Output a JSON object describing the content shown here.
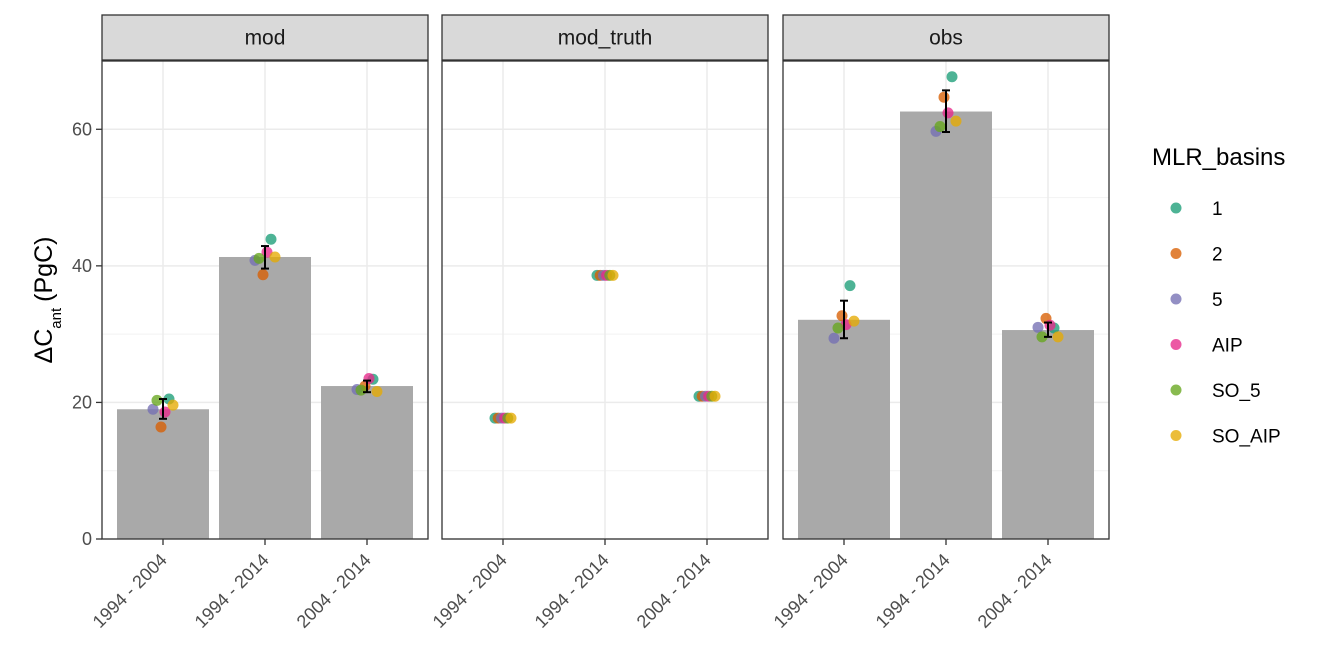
{
  "chart_data": {
    "type": "bar",
    "facets": [
      "mod",
      "mod_truth",
      "obs"
    ],
    "categories": [
      "1994 - 2004",
      "1994 - 2014",
      "2004 - 2014"
    ],
    "ylabel": {
      "main": "ΔC",
      "sub": "ant",
      "unit": "(PgC)"
    },
    "ylim": [
      0,
      70
    ],
    "yticks": [
      0,
      20,
      40,
      60
    ],
    "grid": true,
    "legend": {
      "title": "MLR_basins",
      "placement": "right",
      "entries": [
        "1",
        "2",
        "5",
        "AIP",
        "SO_5",
        "SO_AIP"
      ]
    },
    "colors": {
      "1": "#1B9E77",
      "2": "#D95F02",
      "5": "#7570B3",
      "AIP": "#E7298A",
      "SO_5": "#66A61E",
      "SO_AIP": "#E6AB02",
      "bar": "#a9a9a9",
      "strip": "#d9d9d9"
    },
    "panels": [
      {
        "facet": "mod",
        "bars": [
          19.0,
          41.3,
          22.4
        ],
        "errorbars": [
          [
            17.6,
            20.5
          ],
          [
            39.6,
            42.9
          ],
          [
            21.5,
            23.2
          ]
        ],
        "points": [
          [
            {
              "series": "1",
              "value": 20.5
            },
            {
              "series": "2",
              "value": 16.4
            },
            {
              "series": "5",
              "value": 19.0
            },
            {
              "series": "AIP",
              "value": 18.6
            },
            {
              "series": "SO_5",
              "value": 20.3
            },
            {
              "series": "SO_AIP",
              "value": 19.6
            }
          ],
          [
            {
              "series": "1",
              "value": 43.9
            },
            {
              "series": "2",
              "value": 38.7
            },
            {
              "series": "5",
              "value": 40.8
            },
            {
              "series": "AIP",
              "value": 42.0
            },
            {
              "series": "SO_5",
              "value": 41.1
            },
            {
              "series": "SO_AIP",
              "value": 41.3
            }
          ],
          [
            {
              "series": "1",
              "value": 23.4
            },
            {
              "series": "2",
              "value": 22.4
            },
            {
              "series": "5",
              "value": 21.9
            },
            {
              "series": "AIP",
              "value": 23.5
            },
            {
              "series": "SO_5",
              "value": 21.8
            },
            {
              "series": "SO_AIP",
              "value": 21.6
            }
          ]
        ]
      },
      {
        "facet": "mod_truth",
        "bars": [],
        "errorbars": [],
        "points": [
          [
            {
              "series": "1",
              "value": 17.7
            },
            {
              "series": "2",
              "value": 17.7
            },
            {
              "series": "5",
              "value": 17.7
            },
            {
              "series": "AIP",
              "value": 17.7
            },
            {
              "series": "SO_5",
              "value": 17.7
            },
            {
              "series": "SO_AIP",
              "value": 17.7
            }
          ],
          [
            {
              "series": "1",
              "value": 38.6
            },
            {
              "series": "2",
              "value": 38.6
            },
            {
              "series": "5",
              "value": 38.6
            },
            {
              "series": "AIP",
              "value": 38.6
            },
            {
              "series": "SO_5",
              "value": 38.6
            },
            {
              "series": "SO_AIP",
              "value": 38.6
            }
          ],
          [
            {
              "series": "1",
              "value": 20.9
            },
            {
              "series": "2",
              "value": 20.9
            },
            {
              "series": "5",
              "value": 20.9
            },
            {
              "series": "AIP",
              "value": 20.9
            },
            {
              "series": "SO_5",
              "value": 20.9
            },
            {
              "series": "SO_AIP",
              "value": 20.9
            }
          ]
        ]
      },
      {
        "facet": "obs",
        "bars": [
          32.1,
          62.6,
          30.6
        ],
        "errorbars": [
          [
            29.4,
            34.9
          ],
          [
            59.6,
            65.7
          ],
          [
            29.6,
            31.7
          ]
        ],
        "points": [
          [
            {
              "series": "1",
              "value": 37.1
            },
            {
              "series": "2",
              "value": 32.7
            },
            {
              "series": "5",
              "value": 29.4
            },
            {
              "series": "AIP",
              "value": 31.4
            },
            {
              "series": "SO_5",
              "value": 30.9
            },
            {
              "series": "SO_AIP",
              "value": 31.9
            }
          ],
          [
            {
              "series": "1",
              "value": 67.7
            },
            {
              "series": "2",
              "value": 64.7
            },
            {
              "series": "5",
              "value": 59.7
            },
            {
              "series": "AIP",
              "value": 62.4
            },
            {
              "series": "SO_5",
              "value": 60.4
            },
            {
              "series": "SO_AIP",
              "value": 61.2
            }
          ],
          [
            {
              "series": "1",
              "value": 30.9
            },
            {
              "series": "2",
              "value": 32.3
            },
            {
              "series": "5",
              "value": 31.0
            },
            {
              "series": "AIP",
              "value": 31.3
            },
            {
              "series": "SO_5",
              "value": 29.6
            },
            {
              "series": "SO_AIP",
              "value": 29.6
            }
          ]
        ]
      }
    ]
  }
}
